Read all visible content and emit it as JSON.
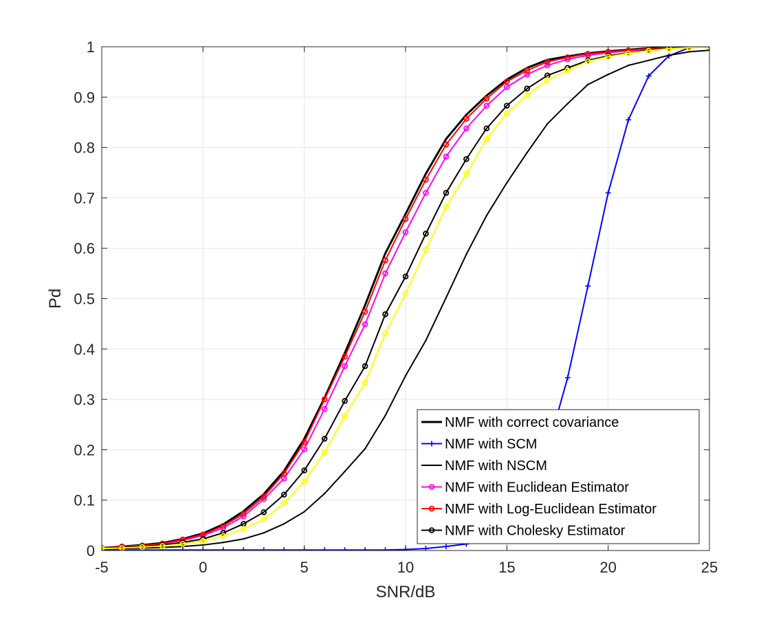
{
  "chart_data": {
    "type": "line",
    "xlabel": "SNR/dB",
    "ylabel": "Pd",
    "xlim": [
      -5,
      25
    ],
    "ylim": [
      0,
      1
    ],
    "xticks": [
      -5,
      0,
      5,
      10,
      15,
      20,
      25
    ],
    "yticks": [
      0,
      0.1,
      0.2,
      0.3,
      0.4,
      0.5,
      0.6,
      0.7,
      0.8,
      0.9,
      1
    ],
    "xtick_labels": [
      "-5",
      "0",
      "5",
      "10",
      "15",
      "20",
      "25"
    ],
    "ytick_labels": [
      "0",
      "0.1",
      "0.2",
      "0.3",
      "0.4",
      "0.5",
      "0.6",
      "0.7",
      "0.8",
      "0.9",
      "1"
    ],
    "grid": true,
    "legend_position": "bottom-right",
    "x": [
      -5,
      -4,
      -3,
      -2,
      -1,
      0,
      1,
      2,
      3,
      4,
      5,
      6,
      7,
      8,
      9,
      10,
      11,
      12,
      13,
      14,
      15,
      16,
      17,
      18,
      19,
      20,
      21,
      22,
      23,
      24,
      25
    ],
    "series": [
      {
        "name": "NMF with correct covariance",
        "color": "#000000",
        "width": 3,
        "marker": "none",
        "values": [
          0.005,
          0.008,
          0.011,
          0.015,
          0.023,
          0.034,
          0.052,
          0.078,
          0.112,
          0.158,
          0.222,
          0.303,
          0.392,
          0.487,
          0.59,
          0.668,
          0.748,
          0.817,
          0.865,
          0.903,
          0.935,
          0.958,
          0.974,
          0.981,
          0.987,
          0.991,
          0.994,
          0.997,
          0.999,
          1.0,
          1.0
        ]
      },
      {
        "name": "NMF with SCM",
        "color": "#0000ff",
        "width": 2,
        "marker": "plus",
        "values": [
          0.001,
          0.001,
          0.001,
          0.001,
          0.001,
          0.001,
          0.001,
          0.001,
          0.001,
          0.001,
          0.001,
          0.001,
          0.001,
          0.001,
          0.001,
          0.002,
          0.004,
          0.008,
          0.013,
          0.024,
          0.05,
          0.1,
          0.2,
          0.343,
          0.525,
          0.71,
          0.855,
          0.942,
          0.982,
          0.998,
          1.0
        ]
      },
      {
        "name": "NMF with NSCM",
        "color": "#000000",
        "width": 2,
        "marker": "dot",
        "values": [
          0.003,
          0.004,
          0.005,
          0.006,
          0.008,
          0.011,
          0.016,
          0.023,
          0.035,
          0.053,
          0.077,
          0.113,
          0.157,
          0.202,
          0.268,
          0.347,
          0.417,
          0.502,
          0.588,
          0.665,
          0.73,
          0.79,
          0.847,
          0.887,
          0.925,
          0.945,
          0.963,
          0.973,
          0.983,
          0.99,
          0.993
        ]
      },
      {
        "name": "NMF with Euclidean Estimator",
        "color": "#ff00ff",
        "width": 2,
        "marker": "circle",
        "values": [
          0.005,
          0.007,
          0.009,
          0.013,
          0.02,
          0.03,
          0.045,
          0.068,
          0.102,
          0.143,
          0.201,
          0.281,
          0.366,
          0.449,
          0.55,
          0.632,
          0.71,
          0.782,
          0.838,
          0.883,
          0.92,
          0.945,
          0.963,
          0.975,
          0.983,
          0.988,
          0.992,
          0.995,
          0.997,
          0.999,
          1.0
        ]
      },
      {
        "name": "NMF with Log-Euclidean Estimator",
        "color": "#ff0000",
        "width": 2,
        "marker": "circle",
        "values": [
          0.005,
          0.008,
          0.01,
          0.014,
          0.022,
          0.032,
          0.049,
          0.073,
          0.107,
          0.153,
          0.215,
          0.3,
          0.385,
          0.474,
          0.576,
          0.658,
          0.736,
          0.806,
          0.857,
          0.897,
          0.931,
          0.953,
          0.97,
          0.979,
          0.986,
          0.99,
          0.993,
          0.996,
          0.998,
          1.0,
          1.0
        ]
      },
      {
        "name": "NMF with Cholesky Estimator",
        "color": "#000000",
        "width": 2,
        "marker": "circle",
        "values": [
          0.004,
          0.006,
          0.008,
          0.011,
          0.016,
          0.023,
          0.035,
          0.053,
          0.076,
          0.111,
          0.159,
          0.222,
          0.297,
          0.366,
          0.469,
          0.544,
          0.629,
          0.71,
          0.777,
          0.838,
          0.883,
          0.917,
          0.943,
          0.958,
          0.973,
          0.982,
          0.988,
          0.993,
          0.997,
          0.999,
          1.0
        ]
      },
      {
        "name": "",
        "color": "#ffff00",
        "width": 2,
        "marker": "circle",
        "legend": false,
        "values": [
          0.004,
          0.005,
          0.007,
          0.009,
          0.013,
          0.019,
          0.029,
          0.043,
          0.062,
          0.094,
          0.137,
          0.195,
          0.267,
          0.333,
          0.431,
          0.51,
          0.597,
          0.682,
          0.748,
          0.817,
          0.868,
          0.904,
          0.934,
          0.953,
          0.971,
          0.98,
          0.987,
          0.992,
          0.996,
          0.998,
          1.0
        ]
      }
    ]
  }
}
